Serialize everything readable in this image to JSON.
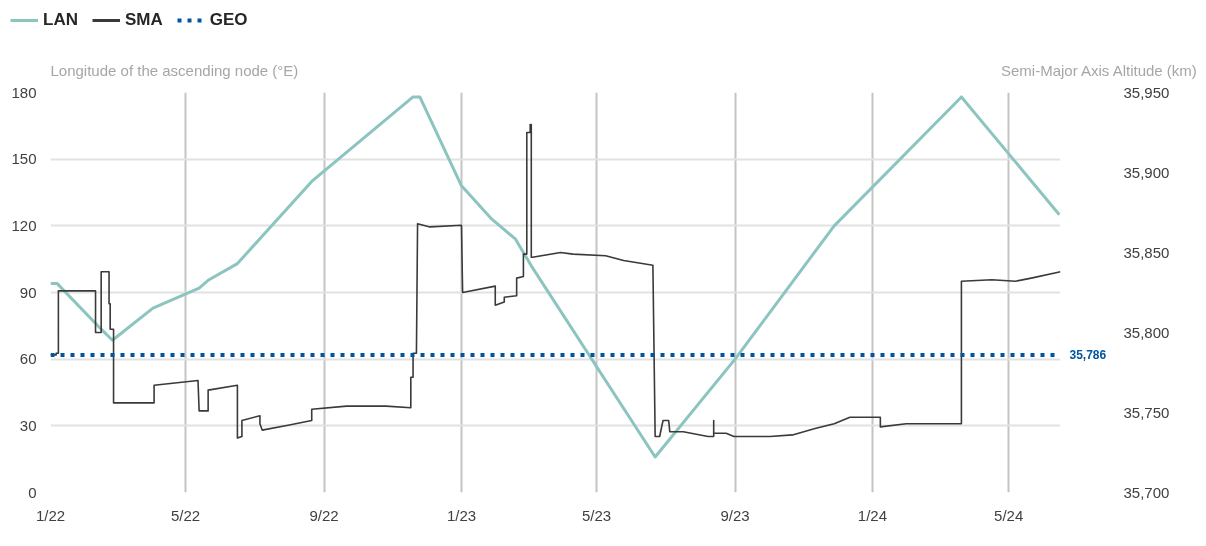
{
  "chart_data": {
    "type": "line",
    "ylabel": "Longitude of the ascending node (°E)",
    "y2label": "Semi-Major Axis Altitude (km)",
    "xlim": [
      "2022-01-01",
      "2024-06-16"
    ],
    "xticks": [
      {
        "value": "2022-01-01",
        "label": "1/22"
      },
      {
        "value": "2022-05-01",
        "label": "5/22"
      },
      {
        "value": "2022-09-01",
        "label": "9/22"
      },
      {
        "value": "2023-01-01",
        "label": "1/23"
      },
      {
        "value": "2023-05-01",
        "label": "5/23"
      },
      {
        "value": "2023-09-01",
        "label": "9/23"
      },
      {
        "value": "2024-01-01",
        "label": "1/24"
      },
      {
        "value": "2024-05-01",
        "label": "5/24"
      }
    ],
    "ylim": [
      0,
      180
    ],
    "yticks": [
      0,
      30,
      60,
      90,
      120,
      150,
      180
    ],
    "y2lim": [
      35700,
      35950
    ],
    "y2ticks": [
      {
        "value": 35700,
        "label": "35,700"
      },
      {
        "value": 35750,
        "label": "35,750"
      },
      {
        "value": 35800,
        "label": "35,800"
      },
      {
        "value": 35850,
        "label": "35,850"
      },
      {
        "value": 35900,
        "label": "35,900"
      },
      {
        "value": 35950,
        "label": "35,950"
      }
    ],
    "grid": true,
    "legend": "top left",
    "marker": "none",
    "series": [
      {
        "name": "LAN",
        "color": "#8cc5bf",
        "x": [
          "2022-01-01",
          "2022-01-07",
          "2022-02-15",
          "2022-02-25",
          "2022-04-02",
          "2022-05-13",
          "2022-05-21",
          "2022-06-16",
          "2022-08-21",
          "2022-11-19",
          "2022-11-25",
          "2023-01-01",
          "2023-01-28",
          "2023-02-18",
          "2023-03-04",
          "2023-06-22",
          "2023-09-01",
          "2023-11-28",
          "2024-03-20",
          "2024-06-15"
        ],
        "values": [
          94,
          94,
          73.5,
          68.5,
          83,
          92,
          95.5,
          103,
          140,
          178,
          178,
          138,
          123,
          114,
          102,
          16,
          60,
          120,
          178,
          125
        ]
      },
      {
        "name": "SMA",
        "color": "#3a3a3a",
        "axis": "y2",
        "x": [
          "2022-01-01",
          "2022-01-06",
          "2022-01-06",
          "2022-01-08",
          "2022-01-08",
          "2022-02-10",
          "2022-02-10",
          "2022-02-15",
          "2022-02-15",
          "2022-02-22",
          "2022-02-22",
          "2022-02-23",
          "2022-02-23",
          "2022-02-26",
          "2022-02-26",
          "2022-04-03",
          "2022-04-03",
          "2022-05-12",
          "2022-05-13",
          "2022-05-21",
          "2022-05-21",
          "2022-06-16",
          "2022-06-16",
          "2022-06-20",
          "2022-06-20",
          "2022-07-06",
          "2022-07-06",
          "2022-07-08",
          "2022-07-31",
          "2022-08-21",
          "2022-08-21",
          "2022-09-21",
          "2022-10-26",
          "2022-11-17",
          "2022-11-17",
          "2022-11-19",
          "2022-11-19",
          "2022-11-22",
          "2022-11-23",
          "2022-12-04",
          "2023-01-01",
          "2023-01-02",
          "2023-01-31",
          "2023-01-31",
          "2023-02-08",
          "2023-02-08",
          "2023-02-19",
          "2023-02-19",
          "2023-02-25",
          "2023-02-25",
          "2023-02-28",
          "2023-02-28",
          "2023-03-03",
          "2023-03-03",
          "2023-03-04",
          "2023-03-04",
          "2023-03-05",
          "2023-03-30",
          "2023-04-10",
          "2023-05-09",
          "2023-05-25",
          "2023-06-20",
          "2023-06-22",
          "2023-06-26",
          "2023-06-29",
          "2023-07-04",
          "2023-07-05",
          "2023-07-17",
          "2023-08-08",
          "2023-08-13",
          "2023-08-13",
          "2023-08-13",
          "2023-08-24",
          "2023-08-31",
          "2023-10-02",
          "2023-10-22",
          "2023-11-11",
          "2023-11-28",
          "2023-12-12",
          "2024-01-08",
          "2024-01-08",
          "2024-01-31",
          "2024-03-03",
          "2024-03-20",
          "2024-03-20",
          "2024-04-16",
          "2024-05-07",
          "2024-05-21",
          "2024-06-16"
        ],
        "values": [
          35786,
          35786,
          35787,
          35787,
          35826,
          35826,
          35800,
          35800,
          35838,
          35838,
          35818,
          35818,
          35802,
          35802,
          35756,
          35756,
          35767,
          35770,
          35751,
          35751,
          35764,
          35767,
          35734,
          35735,
          35745,
          35748,
          35743,
          35739,
          35742,
          35745,
          35752,
          35754,
          35754,
          35753,
          35772,
          35772,
          35787,
          35787,
          35868,
          35866,
          35867,
          35825,
          35829,
          35817,
          35819,
          35822,
          35823,
          35834,
          35835,
          35849,
          35849,
          35925,
          35925,
          35930,
          35930,
          35847,
          35847,
          35850,
          35849,
          35848,
          35845,
          35842,
          35735,
          35735,
          35745,
          35745,
          35738,
          35738,
          35735,
          35735,
          35745,
          35737,
          35737,
          35735,
          35735,
          35736,
          35740,
          35743,
          35747,
          35747,
          35741,
          35743,
          35743,
          35743,
          35832,
          35833,
          35832,
          35834,
          35838
        ]
      },
      {
        "name": "GEO",
        "color": "#0055a0",
        "axis": "y2",
        "line_style": "dotted",
        "x": [
          "2022-01-01",
          "2024-06-16"
        ],
        "values": [
          35786,
          35786
        ],
        "value_labels": [
          null,
          "35,786"
        ]
      }
    ]
  }
}
